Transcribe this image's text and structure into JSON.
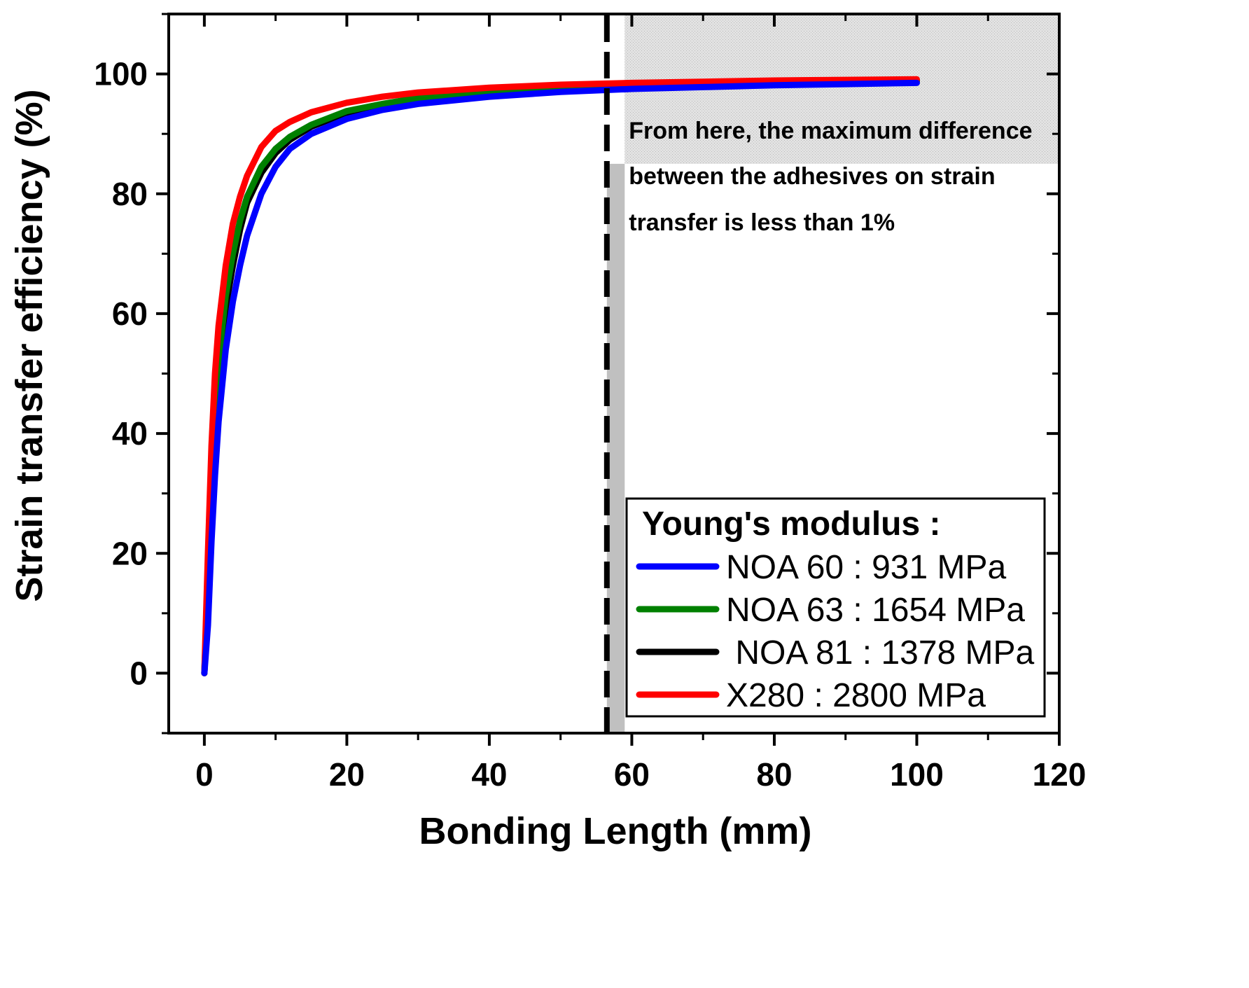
{
  "chart_data": {
    "type": "line",
    "title": "",
    "xlabel": "Bonding Length (mm)",
    "ylabel": "Strain transfer efficiency (%)",
    "xlim": [
      -5,
      120
    ],
    "ylim": [
      -10,
      110
    ],
    "xticks": [
      0,
      20,
      40,
      60,
      80,
      100,
      120
    ],
    "yticks": [
      0,
      20,
      40,
      60,
      80,
      100
    ],
    "xtick_labels": [
      "0",
      "20",
      "40",
      "60",
      "80",
      "100",
      "120"
    ],
    "ytick_labels": [
      "0",
      "20",
      "40",
      "60",
      "80",
      "100"
    ],
    "grid": false,
    "x": [
      0,
      0.5,
      1,
      1.5,
      2,
      3,
      4,
      5,
      6,
      8,
      10,
      12,
      15,
      20,
      25,
      30,
      40,
      50,
      60,
      70,
      80,
      90,
      100
    ],
    "series": [
      {
        "name": "NOA 60 : 931 MPa",
        "color": "#0000ff",
        "values": [
          0,
          8,
          22,
          33,
          42,
          54,
          62,
          68,
          73,
          80,
          84.5,
          87.5,
          90,
          92.5,
          94,
          95,
          96.2,
          97,
          97.5,
          97.8,
          98.1,
          98.3,
          98.5
        ]
      },
      {
        "name": "NOA 63 : 1654 MPa",
        "color": "#008000",
        "values": [
          0,
          15,
          32,
          43,
          52,
          63,
          70,
          75.5,
          79.5,
          84.5,
          87.5,
          89.5,
          91.5,
          93.8,
          95,
          96,
          97,
          97.6,
          98,
          98.3,
          98.5,
          98.7,
          98.9
        ]
      },
      {
        "name": " NOA 81 : 1378 MPa",
        "color": "#000000",
        "values": [
          0,
          13,
          30,
          41,
          50,
          61,
          68,
          74,
          78.5,
          83.5,
          86.8,
          89,
          91.2,
          93.5,
          94.8,
          95.8,
          96.8,
          97.5,
          97.9,
          98.2,
          98.4,
          98.6,
          98.8
        ]
      },
      {
        "name": "X280 : 2800 MPa",
        "color": "#ff0000",
        "values": [
          0,
          20,
          38,
          50,
          58,
          68,
          75,
          79.5,
          83,
          87.8,
          90.5,
          92,
          93.6,
          95.2,
          96.2,
          96.9,
          97.7,
          98.2,
          98.5,
          98.7,
          98.9,
          99,
          99.1
        ]
      }
    ],
    "threshold_x": 56.5,
    "shaded_region_x_start": 59,
    "shaded_region_y_start": 85,
    "annotation": [
      "From here, the maximum difference",
      "between the adhesives on strain",
      "transfer is less than 1%"
    ],
    "legend": {
      "title": "Young's modulus :",
      "position": "bottom-right"
    }
  }
}
